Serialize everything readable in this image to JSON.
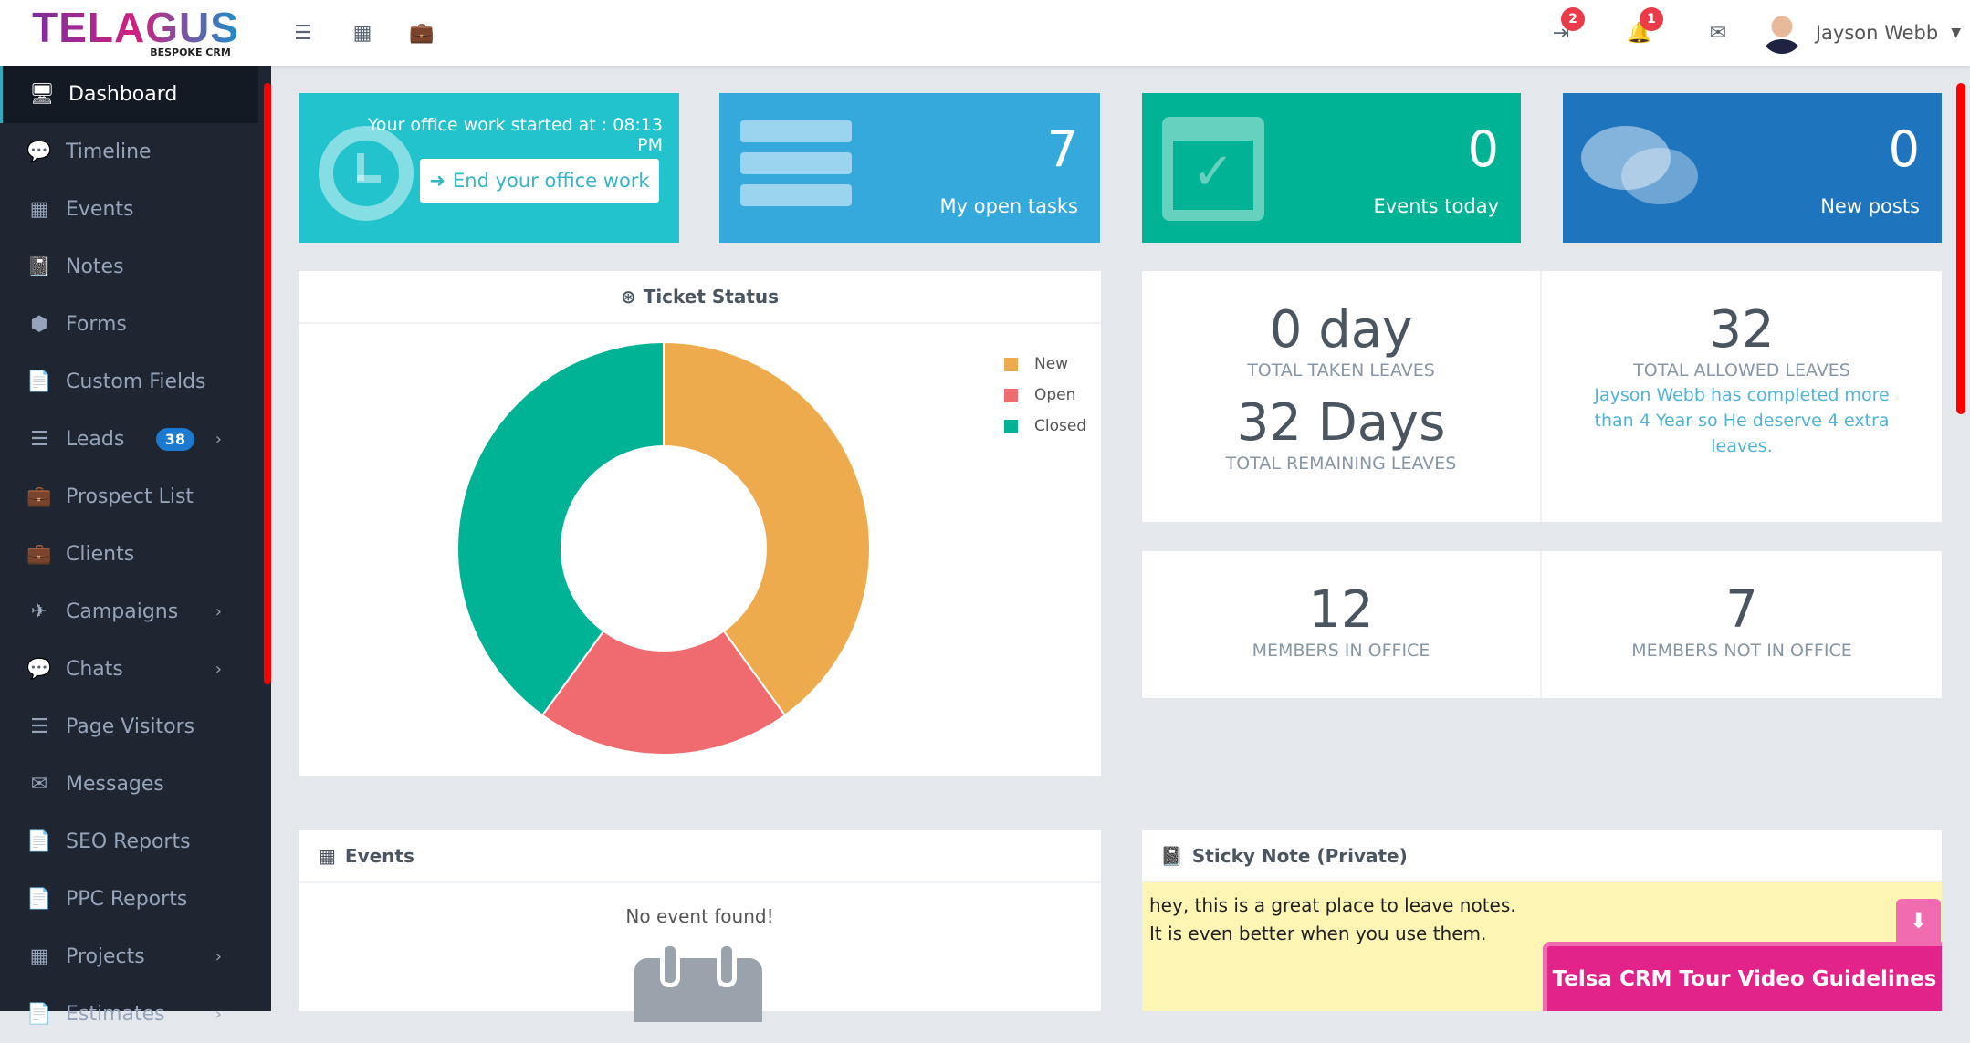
{
  "logo": {
    "brand": "TELAGUS",
    "sub": "BESPOKE CRM"
  },
  "header": {
    "icons": [
      "menu-collapse-icon",
      "grid-icon",
      "briefcase-icon"
    ],
    "checkin_badge": "2",
    "notification_badge": "1",
    "user_name": "Jayson Webb"
  },
  "sidebar": {
    "items": [
      {
        "label": "Dashboard",
        "icon": "monitor-icon",
        "glyph": "🖥"
      },
      {
        "label": "Timeline",
        "icon": "comments-icon",
        "glyph": "💬"
      },
      {
        "label": "Events",
        "icon": "calendar-icon",
        "glyph": "▦"
      },
      {
        "label": "Notes",
        "icon": "book-icon",
        "glyph": "📓"
      },
      {
        "label": "Forms",
        "icon": "cube-icon",
        "glyph": "⬢"
      },
      {
        "label": "Custom Fields",
        "icon": "file-icon",
        "glyph": "📄"
      },
      {
        "label": "Leads",
        "icon": "list-icon",
        "glyph": "☰",
        "count": "38",
        "chevron": true
      },
      {
        "label": "Prospect List",
        "icon": "briefcase-icon",
        "glyph": "💼"
      },
      {
        "label": "Clients",
        "icon": "briefcase-icon",
        "glyph": "💼"
      },
      {
        "label": "Campaigns",
        "icon": "plane-icon",
        "glyph": "✈",
        "chevron": true
      },
      {
        "label": "Chats",
        "icon": "comments-icon",
        "glyph": "💬",
        "chevron": true
      },
      {
        "label": "Page Visitors",
        "icon": "list-icon",
        "glyph": "☰"
      },
      {
        "label": "Messages",
        "icon": "envelope-icon",
        "glyph": "✉"
      },
      {
        "label": "SEO Reports",
        "icon": "file-icon",
        "glyph": "📄"
      },
      {
        "label": "PPC Reports",
        "icon": "file-icon",
        "glyph": "📄"
      },
      {
        "label": "Projects",
        "icon": "grid-icon",
        "glyph": "▦",
        "chevron": true
      },
      {
        "label": "Estimates",
        "icon": "file-icon",
        "glyph": "📄",
        "chevron": true
      }
    ]
  },
  "office": {
    "started": "Your office work started at : 08:13 PM",
    "button": "End your office work"
  },
  "cards": [
    {
      "value": "7",
      "label": "My open tasks",
      "color": "#36a9dc"
    },
    {
      "value": "0",
      "label": "Events today",
      "color": "#00b394"
    },
    {
      "value": "0",
      "label": "New posts",
      "color": "#1f75bd"
    }
  ],
  "ticket": {
    "title": "Ticket Status"
  },
  "chart_data": {
    "type": "pie",
    "title": "Ticket Status",
    "categories": [
      "New",
      "Open",
      "Closed"
    ],
    "values": [
      40,
      20,
      40
    ],
    "colors": [
      "#eeab4d",
      "#f06b70",
      "#00b394"
    ],
    "legend": "top-right"
  },
  "leaves": {
    "taken_value": "0 day",
    "taken_label": "TOTAL TAKEN LEAVES",
    "remaining_value": "32 Days",
    "remaining_label": "TOTAL REMAINING LEAVES",
    "allowed_value": "32",
    "allowed_label": "TOTAL ALLOWED LEAVES",
    "note": "Jayson Webb has completed more than 4 Year so He deserve 4 extra leaves."
  },
  "members": {
    "in_value": "12",
    "in_label": "MEMBERS IN OFFICE",
    "out_value": "7",
    "out_label": "MEMBERS NOT IN OFFICE"
  },
  "events": {
    "title": "Events",
    "empty": "No event found!"
  },
  "sticky": {
    "title": "Sticky Note (Private)",
    "line1": "hey, this is a great place to leave notes.",
    "line2": "It is even better when you use them."
  },
  "tour": {
    "label": "Telsa CRM Tour Video Guidelines"
  }
}
